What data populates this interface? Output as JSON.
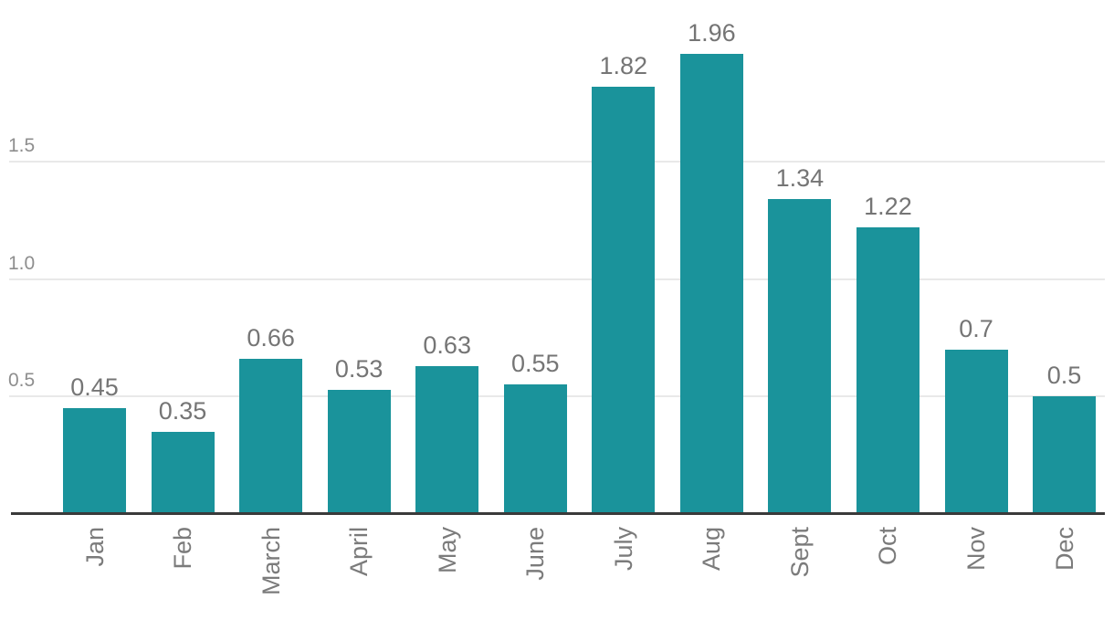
{
  "chart_data": {
    "type": "bar",
    "title": "",
    "xlabel": "",
    "ylabel": "",
    "categories": [
      "Jan",
      "Feb",
      "March",
      "April",
      "May",
      "June",
      "July",
      "Aug",
      "Sept",
      "Oct",
      "Nov",
      "Dec"
    ],
    "values": [
      0.45,
      0.35,
      0.66,
      0.53,
      0.63,
      0.55,
      1.82,
      1.96,
      1.34,
      1.22,
      0.7,
      0.5
    ],
    "value_labels": [
      "0.45",
      "0.35",
      "0.66",
      "0.53",
      "0.63",
      "0.55",
      "1.82",
      "1.96",
      "1.34",
      "1.22",
      "0.7",
      "0.5"
    ],
    "yticks": [
      0.5,
      1.0,
      1.5
    ],
    "ytick_labels": [
      "0.5",
      "1.0",
      "1.5"
    ],
    "ylim": [
      0,
      2.2
    ],
    "grid": true,
    "legend": "none",
    "colors": {
      "bar": "#1A939B",
      "value_label": "#757575",
      "ytick_label": "#8E8E8E",
      "xtick_label": "#7B7B7B",
      "gridline": "#E9E9E9",
      "axis_line": "#3A3A3A",
      "background": "#FFFFFF"
    }
  }
}
